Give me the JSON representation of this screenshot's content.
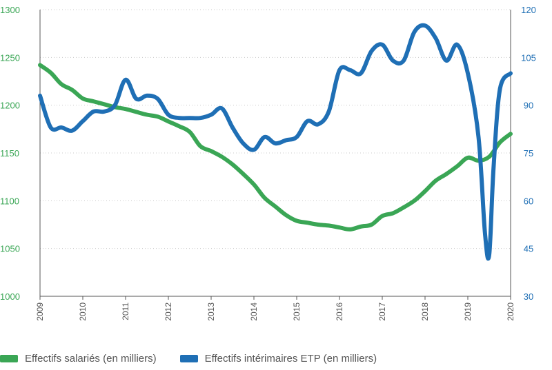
{
  "chart_data": {
    "type": "line",
    "title": "",
    "xlabel": "",
    "ylabel_left": "",
    "ylabel_right": "",
    "x_tick_labels": [
      "2009",
      "2010",
      "2011",
      "2012",
      "2013",
      "2014",
      "2015",
      "2016",
      "2017",
      "2018",
      "2019",
      "2020"
    ],
    "xlim": [
      2009.0,
      2020.0
    ],
    "ylim_left": [
      1000,
      1300
    ],
    "yticks_left": [
      "1000",
      "1050",
      "1100",
      "1150",
      "1200",
      "1250",
      "1300"
    ],
    "ylim_right": [
      30,
      120
    ],
    "yticks_right": [
      "30",
      "45",
      "60",
      "75",
      "90",
      "105",
      "120"
    ],
    "grid": "horizontal dotted",
    "legend_position": "bottom",
    "series": [
      {
        "name": "Effectifs salariés (en milliers)",
        "axis": "left",
        "color": "#3aa655",
        "x": [
          2009.0,
          2009.25,
          2009.5,
          2009.75,
          2010.0,
          2010.25,
          2010.5,
          2010.75,
          2011.0,
          2011.25,
          2011.5,
          2011.75,
          2012.0,
          2012.25,
          2012.5,
          2012.75,
          2013.0,
          2013.25,
          2013.5,
          2013.75,
          2014.0,
          2014.25,
          2014.5,
          2014.75,
          2015.0,
          2015.25,
          2015.5,
          2015.75,
          2016.0,
          2016.25,
          2016.5,
          2016.75,
          2017.0,
          2017.25,
          2017.5,
          2017.75,
          2018.0,
          2018.25,
          2018.5,
          2018.75,
          2019.0,
          2019.25,
          2019.5,
          2019.75,
          2020.0
        ],
        "values": [
          1242,
          1234,
          1222,
          1216,
          1207,
          1204,
          1201,
          1198,
          1196,
          1193,
          1190,
          1188,
          1183,
          1178,
          1172,
          1157,
          1152,
          1146,
          1138,
          1128,
          1117,
          1103,
          1094,
          1085,
          1079,
          1077,
          1075,
          1074,
          1072,
          1070,
          1073,
          1075,
          1084,
          1087,
          1093,
          1100,
          1110,
          1121,
          1128,
          1136,
          1145,
          1142,
          1146,
          1161,
          1170
        ]
      },
      {
        "name": "Effectifs intérimaires ETP (en milliers)",
        "axis": "right",
        "color": "#1f6fb5",
        "x": [
          2009.0,
          2009.25,
          2009.5,
          2009.75,
          2010.0,
          2010.25,
          2010.5,
          2010.75,
          2011.0,
          2011.25,
          2011.5,
          2011.75,
          2012.0,
          2012.25,
          2012.5,
          2012.75,
          2013.0,
          2013.25,
          2013.5,
          2013.75,
          2014.0,
          2014.25,
          2014.5,
          2014.75,
          2015.0,
          2015.25,
          2015.5,
          2015.75,
          2016.0,
          2016.25,
          2016.5,
          2016.75,
          2017.0,
          2017.25,
          2017.5,
          2017.75,
          2018.0,
          2018.25,
          2018.5,
          2018.75,
          2019.0,
          2019.25,
          2019.4,
          2019.5,
          2019.6,
          2019.75,
          2020.0
        ],
        "values": [
          93,
          83,
          83,
          82,
          85,
          88,
          88,
          90,
          98,
          92,
          93,
          92,
          87,
          86,
          86,
          86,
          87,
          89,
          83,
          78,
          76,
          80,
          78,
          79,
          80,
          85,
          84,
          88,
          101,
          101,
          100,
          107,
          109,
          104,
          104,
          113,
          115,
          111,
          104,
          109,
          100,
          80,
          50,
          43,
          70,
          95,
          100
        ]
      }
    ]
  }
}
